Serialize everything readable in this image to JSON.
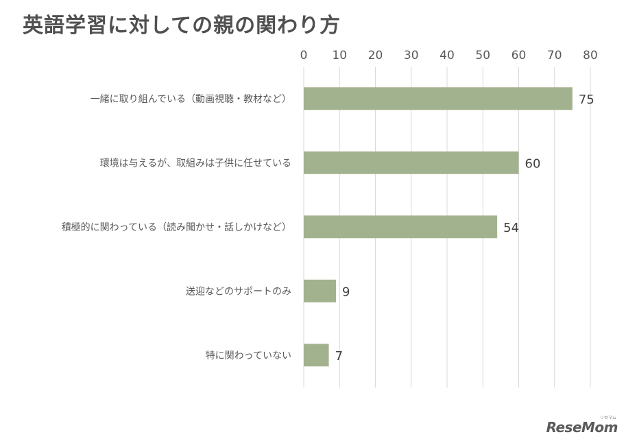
{
  "title": "英語学習に対しての親の関わり方",
  "chart_data": {
    "type": "bar",
    "orientation": "horizontal",
    "title": "英語学習に対しての親の関わり方",
    "categories": [
      "一緒に取り組んでいる（動画視聴・教材など）",
      "環境は与えるが、取組みは子供に任せている",
      "積極的に関わっている（読み聞かせ・話しかけなど）",
      "送迎などのサポートのみ",
      "特に関わっていない"
    ],
    "values": [
      75,
      60,
      54,
      9,
      7
    ],
    "xlim": [
      0,
      80
    ],
    "xticks": [
      0,
      10,
      20,
      30,
      40,
      50,
      60,
      70,
      80
    ],
    "axis_position": "top",
    "grid": true,
    "data_labels": true,
    "bar_color": "#a3b28e",
    "grid_color": "#d9d9d9",
    "text_color": "#595959"
  },
  "logo": {
    "text": "ReseMom",
    "sub": "リセマム"
  }
}
